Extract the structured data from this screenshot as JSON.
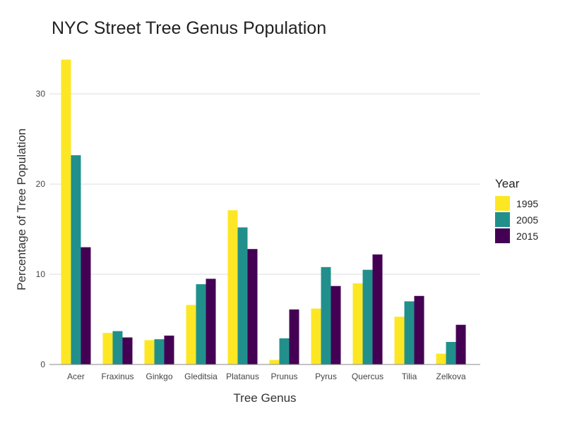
{
  "chart_data": {
    "type": "bar",
    "title": "NYC Street Tree Genus Population",
    "xlabel": "Tree Genus",
    "ylabel": "Percentage of Tree Population",
    "categories": [
      "Acer",
      "Fraxinus",
      "Ginkgo",
      "Gleditsia",
      "Platanus",
      "Prunus",
      "Pyrus",
      "Quercus",
      "Tilia",
      "Zelkova"
    ],
    "series": [
      {
        "name": "1995",
        "color": "#fde725",
        "values": [
          33.8,
          3.5,
          2.7,
          6.6,
          17.1,
          0.5,
          6.2,
          9.0,
          5.3,
          1.2
        ]
      },
      {
        "name": "2005",
        "color": "#21908c",
        "values": [
          23.2,
          3.7,
          2.8,
          8.9,
          15.2,
          2.9,
          10.8,
          10.5,
          7.0,
          2.5
        ]
      },
      {
        "name": "2015",
        "color": "#440154",
        "values": [
          13.0,
          3.0,
          3.2,
          9.5,
          12.8,
          6.1,
          8.7,
          12.2,
          7.6,
          4.4
        ]
      }
    ],
    "ylim": [
      0,
      34
    ],
    "yticks": [
      0,
      10,
      20,
      30
    ],
    "grid": true,
    "legend": {
      "title": "Year",
      "placement": "right"
    }
  }
}
